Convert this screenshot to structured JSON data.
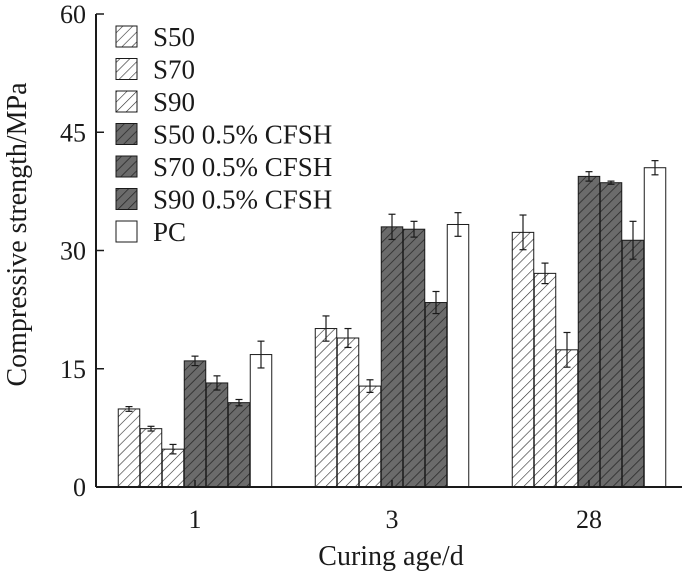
{
  "chart_data": {
    "type": "bar",
    "xlabel": "Curing age/d",
    "ylabel": "Compressive strength/MPa",
    "ylim": [
      0,
      60
    ],
    "yticks": [
      "0",
      "15",
      "30",
      "45",
      "60"
    ],
    "categories": [
      "1",
      "3",
      "28"
    ],
    "grid": false,
    "legend_position": "top-left",
    "series": [
      {
        "name": "S50",
        "values": [
          9.9,
          20.1,
          32.3
        ],
        "errors": [
          0.3,
          1.6,
          2.2
        ],
        "fill": "#ffffff",
        "hatch": "light"
      },
      {
        "name": "S70",
        "values": [
          7.4,
          18.9,
          27.1
        ],
        "errors": [
          0.3,
          1.2,
          1.3
        ],
        "fill": "#ffffff",
        "hatch": "light"
      },
      {
        "name": "S90",
        "values": [
          4.8,
          12.8,
          17.4
        ],
        "errors": [
          0.6,
          0.8,
          2.2
        ],
        "fill": "#ffffff",
        "hatch": "light"
      },
      {
        "name": "S50 0.5% CFSH",
        "values": [
          16.0,
          33.0,
          39.4
        ],
        "errors": [
          0.6,
          1.6,
          0.6
        ],
        "fill": "#6b6b6b",
        "hatch": "dark"
      },
      {
        "name": "S70 0.5% CFSH",
        "values": [
          13.2,
          32.7,
          38.6
        ],
        "errors": [
          0.9,
          1.0,
          0.2
        ],
        "fill": "#6b6b6b",
        "hatch": "dark"
      },
      {
        "name": "S90 0.5% CFSH",
        "values": [
          10.7,
          23.4,
          31.3
        ],
        "errors": [
          0.4,
          1.4,
          2.4
        ],
        "fill": "#6b6b6b",
        "hatch": "dark"
      },
      {
        "name": "PC",
        "values": [
          16.8,
          33.3,
          40.5
        ],
        "errors": [
          1.7,
          1.5,
          0.9
        ],
        "fill": "#ffffff",
        "hatch": "none"
      }
    ]
  }
}
